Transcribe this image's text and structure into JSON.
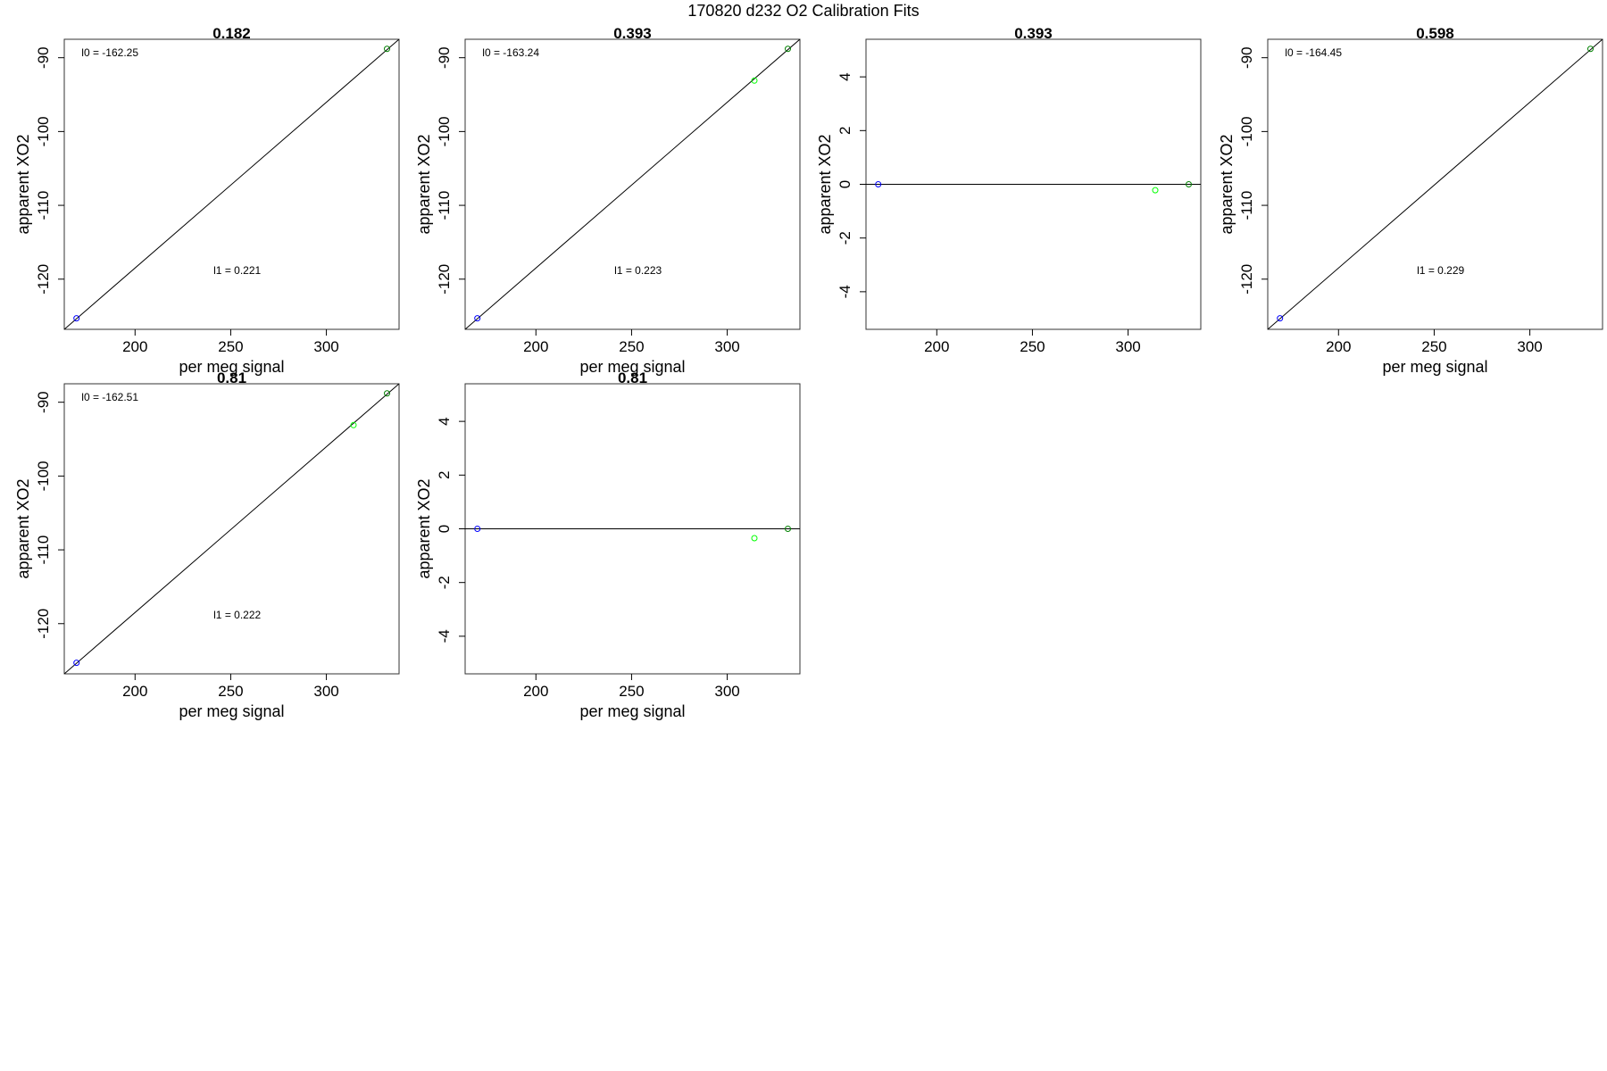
{
  "figure": {
    "title": "170820   d232   O2 Calibration Fits"
  },
  "chart_data": [
    {
      "type": "scatter",
      "title": "0.182",
      "xlabel": "per meg signal",
      "ylabel": "apparent XO2",
      "xlim": [
        163,
        338
      ],
      "ylim": [
        -126.8,
        -87.5
      ],
      "xticks": [
        200,
        250,
        300
      ],
      "yticks": [
        -90,
        -100,
        -110,
        -120
      ],
      "points": [
        {
          "x": 169.4,
          "y": -125.3,
          "color": "#0000ff"
        },
        {
          "x": 331.7,
          "y": -88.8,
          "color": "#008000"
        }
      ],
      "fit_line": {
        "x0": 163,
        "y0": -126.8,
        "x1": 338,
        "y1": -87.5
      },
      "annotations": [
        {
          "text": "l0 =  -162.25",
          "x": 172,
          "y": -89.8
        },
        {
          "text": "l1 =  0.221",
          "x": 241,
          "y": -119.3
        }
      ]
    },
    {
      "type": "scatter",
      "title": "0.393",
      "xlabel": "per meg signal",
      "ylabel": "apparent XO2",
      "xlim": [
        163,
        338
      ],
      "ylim": [
        -126.8,
        -87.5
      ],
      "xticks": [
        200,
        250,
        300
      ],
      "yticks": [
        -90,
        -100,
        -110,
        -120
      ],
      "points": [
        {
          "x": 169.4,
          "y": -125.3,
          "color": "#0000ff"
        },
        {
          "x": 314.2,
          "y": -93.1,
          "color": "#00ff00"
        },
        {
          "x": 331.7,
          "y": -88.8,
          "color": "#008000"
        }
      ],
      "fit_line": {
        "x0": 163,
        "y0": -126.8,
        "x1": 338,
        "y1": -87.5
      },
      "annotations": [
        {
          "text": "l0 =  -163.24",
          "x": 172,
          "y": -89.8
        },
        {
          "text": "l1 =  0.223",
          "x": 241,
          "y": -119.3
        }
      ]
    },
    {
      "type": "scatter",
      "title": "0.393",
      "xlabel": "",
      "ylabel": "apparent XO2",
      "xlim": [
        163,
        338
      ],
      "ylim": [
        -5.4,
        5.4
      ],
      "xticks": [
        200,
        250,
        300
      ],
      "yticks": [
        4,
        2,
        0,
        -2,
        -4
      ],
      "points": [
        {
          "x": 169.4,
          "y": 0.0,
          "color": "#0000ff"
        },
        {
          "x": 314.2,
          "y": -0.22,
          "color": "#00ff00"
        },
        {
          "x": 331.7,
          "y": 0.0,
          "color": "#008000"
        }
      ],
      "hline": 0,
      "annotations": []
    },
    {
      "type": "scatter",
      "title": "0.598",
      "xlabel": "per meg signal",
      "ylabel": "apparent XO2",
      "xlim": [
        163,
        338
      ],
      "ylim": [
        -126.8,
        -87.5
      ],
      "xticks": [
        200,
        250,
        300
      ],
      "yticks": [
        -90,
        -100,
        -110,
        -120
      ],
      "points": [
        {
          "x": 169.4,
          "y": -125.3,
          "color": "#0000ff"
        },
        {
          "x": 331.7,
          "y": -88.8,
          "color": "#008000"
        }
      ],
      "fit_line": {
        "x0": 163,
        "y0": -126.8,
        "x1": 338,
        "y1": -87.5
      },
      "annotations": [
        {
          "text": "l0 =  -164.45",
          "x": 172,
          "y": -89.8
        },
        {
          "text": "l1 =  0.229",
          "x": 241,
          "y": -119.3
        }
      ]
    },
    {
      "type": "scatter",
      "title": "0.81",
      "xlabel": "per meg signal",
      "ylabel": "apparent XO2",
      "xlim": [
        163,
        338
      ],
      "ylim": [
        -126.8,
        -87.5
      ],
      "xticks": [
        200,
        250,
        300
      ],
      "yticks": [
        -90,
        -100,
        -110,
        -120
      ],
      "points": [
        {
          "x": 169.4,
          "y": -125.3,
          "color": "#0000ff"
        },
        {
          "x": 314.2,
          "y": -93.1,
          "color": "#00ff00"
        },
        {
          "x": 331.7,
          "y": -88.8,
          "color": "#008000"
        }
      ],
      "fit_line": {
        "x0": 163,
        "y0": -126.8,
        "x1": 338,
        "y1": -87.5
      },
      "annotations": [
        {
          "text": "l0 =  -162.51",
          "x": 172,
          "y": -89.8
        },
        {
          "text": "l1 =  0.222",
          "x": 241,
          "y": -119.3
        }
      ]
    },
    {
      "type": "scatter",
      "title": "0.81",
      "xlabel": "per meg signal",
      "ylabel": "apparent XO2",
      "xlim": [
        163,
        338
      ],
      "ylim": [
        -5.4,
        5.4
      ],
      "xticks": [
        200,
        250,
        300
      ],
      "yticks": [
        4,
        2,
        0,
        -2,
        -4
      ],
      "points": [
        {
          "x": 169.4,
          "y": 0.0,
          "color": "#0000ff"
        },
        {
          "x": 314.2,
          "y": -0.35,
          "color": "#00ff00"
        },
        {
          "x": 331.7,
          "y": 0.0,
          "color": "#008000"
        }
      ],
      "hline": 0,
      "annotations": []
    }
  ]
}
